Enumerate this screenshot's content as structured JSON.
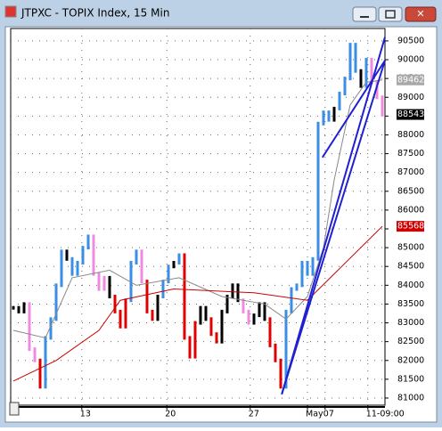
{
  "window_title": "JTPXC - TOPIX Index, 15 Min",
  "chart_data": {
    "type": "price-bars",
    "xlim": [
      -0.5,
      69.5
    ],
    "ylim": [
      80810,
      90830
    ],
    "yticks": [
      81000,
      81500,
      82000,
      82500,
      83000,
      83500,
      84000,
      84500,
      85000,
      85500,
      86000,
      86500,
      87000,
      87500,
      88000,
      88500,
      89000,
      89500,
      90000,
      90500
    ],
    "xticks": [
      {
        "value": 12.8,
        "label": "13"
      },
      {
        "value": 28.7,
        "label": "20"
      },
      {
        "value": 44.3,
        "label": "27"
      },
      {
        "value": 55,
        "label": "May"
      },
      {
        "value": 58.3,
        "label": "07"
      },
      {
        "value": 66.3,
        "label": "11-09:00"
      }
    ],
    "grid": true,
    "series": [
      {
        "name": "price",
        "values": [
          83400,
          83300,
          83500,
          82300,
          82000,
          81300,
          82600,
          83100,
          84000,
          84900,
          84700,
          84300,
          84600,
          85000,
          85300,
          84300,
          83900,
          84200,
          83700,
          83300,
          82900,
          83600,
          84600,
          84900,
          84100,
          83300,
          83100,
          83700,
          84100,
          84500,
          84600,
          84800,
          82600,
          82100,
          83000,
          83400,
          83100,
          82700,
          82500,
          83300,
          83700,
          84000,
          83600,
          83300,
          83000,
          83200,
          83500,
          83100,
          82400,
          82000,
          81300,
          83300,
          83900,
          84000,
          84600,
          84300,
          84700,
          88300,
          88600,
          88400,
          88700,
          89100,
          89500,
          90400,
          89700,
          89300,
          90000,
          89400,
          89000,
          88543
        ],
        "colors": [
          "#000000",
          "#000000",
          "#000000",
          "#f08ae0",
          "#f08ae0",
          "#e00000",
          "#3a8ee6",
          "#3a8ee6",
          "#3a8ee6",
          "#3a8ee6",
          "#000000",
          "#3a8ee6",
          "#3a8ee6",
          "#3a8ee6",
          "#3a8ee6",
          "#f08ae0",
          "#f08ae0",
          "#f08ae0",
          "#000000",
          "#e00000",
          "#e00000",
          "#e00000",
          "#3a8ee6",
          "#3a8ee6",
          "#f08ae0",
          "#e00000",
          "#e00000",
          "#000000",
          "#3a8ee6",
          "#3a8ee6",
          "#000000",
          "#3a8ee6",
          "#e00000",
          "#e00000",
          "#e00000",
          "#000000",
          "#000000",
          "#e00000",
          "#e00000",
          "#000000",
          "#000000",
          "#000000",
          "#000000",
          "#f08ae0",
          "#f08ae0",
          "#000000",
          "#000000",
          "#000000",
          "#e00000",
          "#e00000",
          "#e00000",
          "#3a8ee6",
          "#3a8ee6",
          "#3a8ee6",
          "#3a8ee6",
          "#3a8ee6",
          "#3a8ee6",
          "#3a8ee6",
          "#3a8ee6",
          "#3a8ee6",
          "#000000",
          "#3a8ee6",
          "#3a8ee6",
          "#3a8ee6",
          "#3a8ee6",
          "#000000",
          "#3a8ee6",
          "#f08ae0",
          "#f08ae0",
          "#f08ae0"
        ]
      }
    ],
    "averages": [
      {
        "color": "#888888",
        "x": [
          0,
          6,
          11,
          18,
          23,
          31,
          39,
          47,
          51,
          55,
          58,
          60,
          63,
          66,
          69
        ],
        "values": [
          82800,
          82600,
          84200,
          84400,
          84000,
          84200,
          83700,
          83500,
          83100,
          83700,
          85000,
          86800,
          88800,
          89400,
          89462
        ]
      },
      {
        "color": "#cc0000",
        "x": [
          0,
          8,
          16,
          20,
          30,
          45,
          55,
          60,
          69
        ],
        "values": [
          81450,
          82000,
          82800,
          83600,
          83900,
          83800,
          83600,
          84300,
          85568
        ]
      }
    ],
    "trendlines": [
      {
        "color": "#2020d0",
        "x": [
          50.2,
          69.5
        ],
        "values": [
          81100,
          90600
        ]
      },
      {
        "color": "#2020d0",
        "x": [
          50.2,
          69.5
        ],
        "values": [
          81100,
          89980
        ]
      },
      {
        "color": "#2020d0",
        "x": [
          57.8,
          69.5
        ],
        "values": [
          87400,
          89980
        ]
      }
    ],
    "markers": [
      {
        "value": 89462,
        "color": "#a8a8a8"
      },
      {
        "value": 88543,
        "color": "#000000"
      },
      {
        "value": 85568,
        "color": "#d00000"
      }
    ]
  }
}
